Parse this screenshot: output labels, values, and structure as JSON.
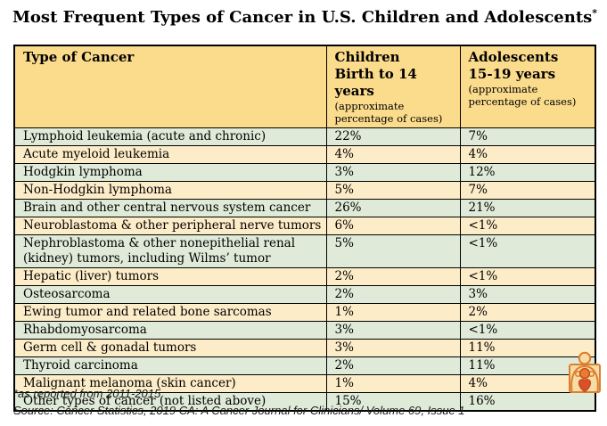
{
  "title": {
    "text": "Most Frequent Types of Cancer in U.S. Children and Adolescents",
    "asterisk": "*"
  },
  "chart_data": {
    "type": "table",
    "title": "Most Frequent Types of Cancer in U.S. Children and Adolescents*",
    "columns": [
      {
        "label": "Type of Cancer",
        "sublabel": "",
        "note": ""
      },
      {
        "label": "Children",
        "sublabel": "Birth to 14 years",
        "note": "(approximate percentage of cases)"
      },
      {
        "label": "Adolescents",
        "sublabel": "15-19 years",
        "note": "(approximate percentage of cases)"
      }
    ],
    "rows": [
      {
        "type": "Lymphoid leukemia (acute and chronic)",
        "children": "22%",
        "adolescents": "7%"
      },
      {
        "type": "Acute myeloid leukemia",
        "children": "4%",
        "adolescents": "4%"
      },
      {
        "type": "Hodgkin lymphoma",
        "children": "3%",
        "adolescents": "12%"
      },
      {
        "type": "Non-Hodgkin lymphoma",
        "children": "5%",
        "adolescents": "7%"
      },
      {
        "type": "Brain and other central nervous system cancer",
        "children": "26%",
        "adolescents": "21%"
      },
      {
        "type": "Neuroblastoma & other peripheral nerve tumors",
        "children": "6%",
        "adolescents": "<1%"
      },
      {
        "type": "Nephroblastoma & other nonepithelial renal (kidney) tumors, including Wilms’ tumor",
        "children": "5%",
        "adolescents": "<1%"
      },
      {
        "type": "Hepatic (liver) tumors",
        "children": "2%",
        "adolescents": "<1%"
      },
      {
        "type": "Osteosarcoma",
        "children": "2%",
        "adolescents": "3%"
      },
      {
        "type": "Ewing tumor and related bone sarcomas",
        "children": "1%",
        "adolescents": "2%"
      },
      {
        "type": "Rhabdomyosarcoma",
        "children": "3%",
        "adolescents": "<1%"
      },
      {
        "type": "Germ cell & gonadal tumors",
        "children": "3%",
        "adolescents": "11%"
      },
      {
        "type": "Thyroid carcinoma",
        "children": "2%",
        "adolescents": "11%"
      },
      {
        "type": "Malignant melanoma (skin cancer)",
        "children": "1%",
        "adolescents": "4%"
      },
      {
        "type": "Other types of cancer (not listed above)",
        "children": "15%",
        "adolescents": "16%"
      }
    ],
    "row_stripe_order": [
      "green",
      "yellow"
    ],
    "legend_position": "none",
    "grid": true
  },
  "footnotes": {
    "reported": "*as reported from 2011-2015",
    "source": "Source: Cancer Statistics, 2019 CA: A Cancer Journal for Clinicians/ Volume 69, Issue 1"
  },
  "icons": {
    "logo": "parent-child-icon"
  },
  "colors": {
    "header_bg": "#FBDB8C",
    "row_green": "#DFEBD8",
    "row_yellow": "#FDECC8",
    "table_border": "#000000",
    "icon_outline": "#DC7E2F",
    "icon_fill": "#F8DCA6",
    "icon_child_head": "#ED7A33",
    "icon_child_body": "#DC4F28"
  }
}
